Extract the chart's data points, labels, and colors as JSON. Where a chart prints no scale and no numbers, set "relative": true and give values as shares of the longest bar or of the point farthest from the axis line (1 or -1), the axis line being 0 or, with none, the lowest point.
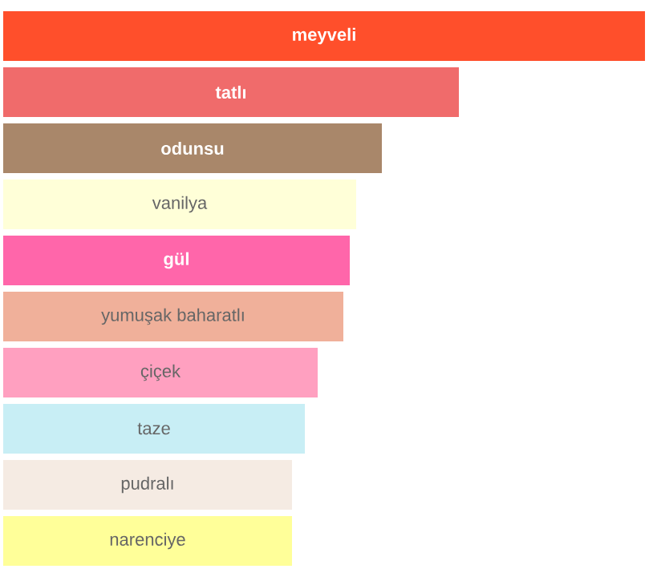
{
  "chart_data": {
    "type": "bar",
    "orientation": "horizontal",
    "relative": true,
    "categories": [
      "meyveli",
      "tatlı",
      "odunsu",
      "vanilya",
      "gül",
      "yumuşak baharatlı",
      "çiçek",
      "taze",
      "pudralı",
      "narenciye"
    ],
    "values": [
      1,
      0.71,
      0.59,
      0.55,
      0.54,
      0.53,
      0.49,
      0.47,
      0.45,
      0.45
    ],
    "colors": [
      "#ff4f2b",
      "#f06b6b",
      "#a9876a",
      "#ffffd8",
      "#ff66aa",
      "#f0b09a",
      "#ffa0c0",
      "#c8eef5",
      "#f5ebe3",
      "#ffff99"
    ]
  }
}
